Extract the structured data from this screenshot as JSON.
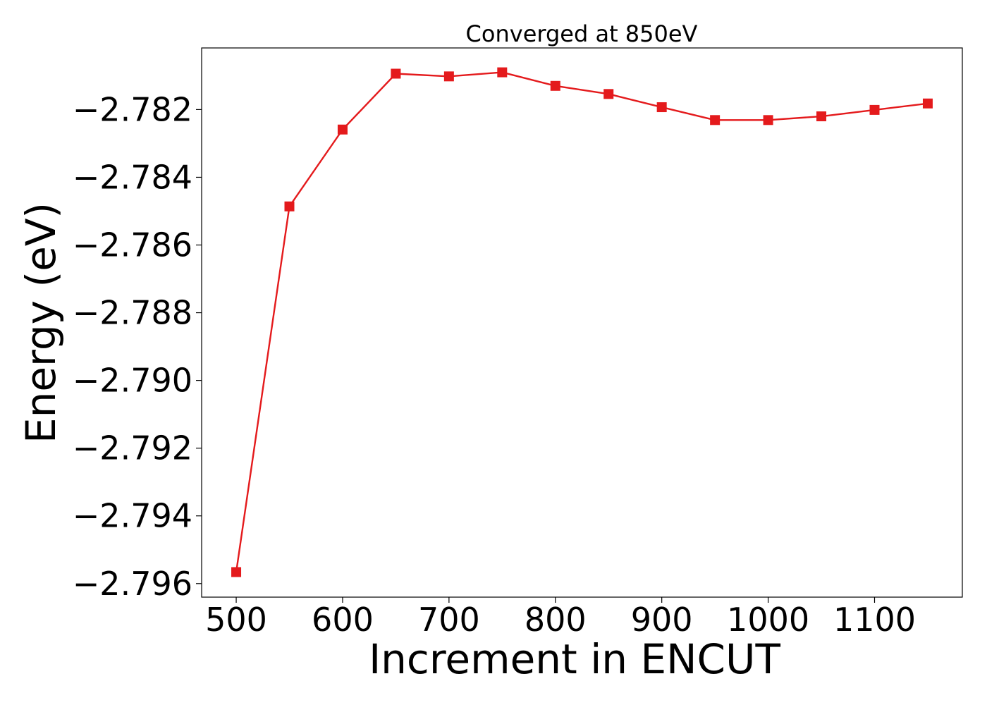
{
  "chart_data": {
    "type": "line",
    "title": "Converged at 850eV",
    "xlabel": "Increment in ENCUT",
    "ylabel": "Energy (eV)",
    "xlim": [
      467.5,
      1182.5
    ],
    "ylim": [
      -2.7964,
      -2.78018
    ],
    "xticks": [
      500,
      600,
      700,
      800,
      900,
      1000,
      1100
    ],
    "xtick_labels": [
      "500",
      "600",
      "700",
      "800",
      "900",
      "1000",
      "1100"
    ],
    "yticks": [
      -2.782,
      -2.784,
      -2.786,
      -2.788,
      -2.79,
      -2.792,
      -2.794,
      -2.796
    ],
    "ytick_labels": [
      "−2.782",
      "−2.784",
      "−2.786",
      "−2.788",
      "−2.790",
      "−2.792",
      "−2.794",
      "−2.796"
    ],
    "grid": false,
    "series": [
      {
        "color": "#e41a1c",
        "marker": "square",
        "x": [
          500,
          550,
          600,
          650,
          700,
          750,
          800,
          850,
          900,
          950,
          1000,
          1050,
          1100,
          1150
        ],
        "y": [
          -2.79566,
          -2.78486,
          -2.78259,
          -2.78094,
          -2.78102,
          -2.7809,
          -2.7813,
          -2.78154,
          -2.78193,
          -2.78231,
          -2.78231,
          -2.7822,
          -2.78201,
          -2.78182
        ]
      }
    ]
  }
}
